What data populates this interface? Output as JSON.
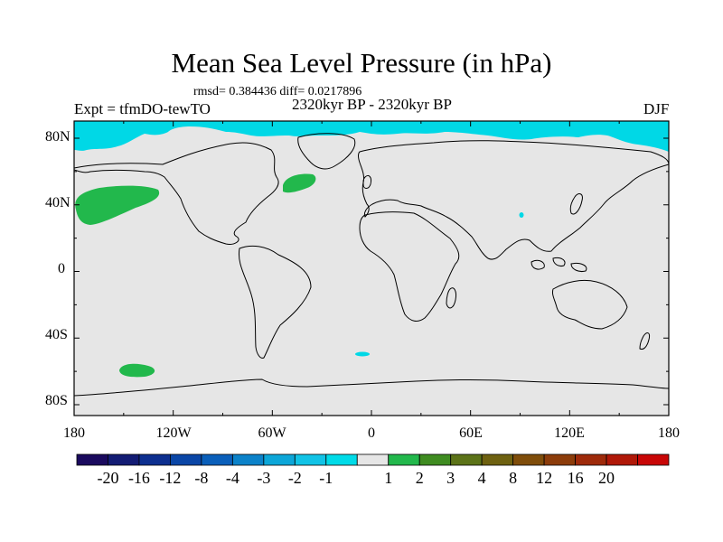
{
  "title": "Mean Sea Level Pressure (in hPa)",
  "stats": "rmsd= 0.384436 diff= 0.0217896",
  "experiment": "Expt = tfmDO-tewTO",
  "period": "2320kyr BP - 2320kyr BP",
  "season": "DJF",
  "y_axis_labels": [
    "80N",
    "40N",
    "0",
    "40S",
    "80S"
  ],
  "x_axis_labels": [
    "180",
    "120W",
    "60W",
    "0",
    "60E",
    "120E",
    "180"
  ],
  "colorbar": {
    "colors": [
      "#1a0a5e",
      "#131c74",
      "#0d2f8f",
      "#0a46a6",
      "#0a5fba",
      "#0b82c9",
      "#0ca6d8",
      "#11c3e6",
      "#00dbe8",
      "#e6e6e6",
      "#22b84c",
      "#3f8c21",
      "#5c7318",
      "#6e6110",
      "#7f4d0a",
      "#8c3c0a",
      "#9e2a0a",
      "#b01808",
      "#c80606"
    ],
    "labels": [
      "-20",
      "-16",
      "-12",
      "-8",
      "-4",
      "-3",
      "-2",
      "-1",
      "1",
      "2",
      "3",
      "4",
      "8",
      "12",
      "16",
      "20"
    ]
  },
  "colors": {
    "background_field": "#e6e6e6",
    "negative_small": "#00d8e6",
    "positive_small": "#22b84c"
  }
}
